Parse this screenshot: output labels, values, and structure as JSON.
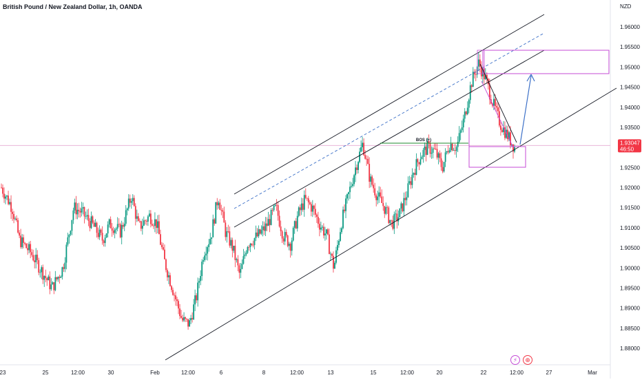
{
  "header": {
    "title": "British Pound / New Zealand Dollar, 1h, OANDA",
    "currency": "NZD"
  },
  "price_tag": {
    "price": "1.93047",
    "countdown": "46:50",
    "color": "#f23645"
  },
  "annotations": {
    "bos_label": "BOS (+)"
  },
  "bottom_icons": [
    {
      "name": "lightning-icon",
      "glyph": "⚡"
    },
    {
      "name": "globe-icon",
      "glyph": "⊕"
    }
  ],
  "colors": {
    "up": "#089981",
    "down": "#f23645",
    "zone": "#c44ad6",
    "projection": "#3b6fc7",
    "channel": "#131722",
    "bos_line": "#1f8a2e",
    "current_price_line": "#e8b4d8"
  },
  "chart_data": {
    "type": "candlestick",
    "title": "British Pound / New Zealand Dollar, 1h, OANDA",
    "ylabel": "NZD",
    "ylim": [
      1.8775,
      1.9655
    ],
    "y_ticks": [
      "1.96000",
      "1.95500",
      "1.95000",
      "1.94500",
      "1.94000",
      "1.93500",
      "1.93000",
      "1.92500",
      "1.92000",
      "1.91500",
      "1.91000",
      "1.90500",
      "1.90000",
      "1.89500",
      "1.89000",
      "1.88500",
      "1.88000"
    ],
    "x_tick_labels": [
      "23",
      "25",
      "12:00",
      "30",
      "Feb",
      "12:00",
      "6",
      "8",
      "12:00",
      "13",
      "15",
      "12:00",
      "20",
      "22",
      "12:00",
      "27",
      "Mar"
    ],
    "last_price": 1.93047,
    "price_path": [
      [
        0,
        1.92
      ],
      [
        3,
        1.915
      ],
      [
        5,
        1.907
      ],
      [
        8,
        1.904
      ],
      [
        12,
        1.898
      ],
      [
        14,
        1.895
      ],
      [
        17,
        1.9
      ],
      [
        20,
        1.915
      ],
      [
        22,
        1.914
      ],
      [
        25,
        1.911
      ],
      [
        28,
        1.907
      ],
      [
        30,
        1.911
      ],
      [
        33,
        1.909
      ],
      [
        36,
        1.918
      ],
      [
        38,
        1.91
      ],
      [
        41,
        1.913
      ],
      [
        43,
        1.911
      ],
      [
        45,
        1.902
      ],
      [
        48,
        1.893
      ],
      [
        50,
        1.887
      ],
      [
        52,
        1.886
      ],
      [
        54,
        1.893
      ],
      [
        56,
        1.904
      ],
      [
        58,
        1.908
      ],
      [
        60,
        1.918
      ],
      [
        62,
        1.909
      ],
      [
        64,
        1.905
      ],
      [
        66,
        1.898
      ],
      [
        68,
        1.906
      ],
      [
        71,
        1.908
      ],
      [
        73,
        1.91
      ],
      [
        76,
        1.915
      ],
      [
        78,
        1.908
      ],
      [
        80,
        1.906
      ],
      [
        82,
        1.913
      ],
      [
        84,
        1.917
      ],
      [
        86,
        1.915
      ],
      [
        88,
        1.911
      ],
      [
        90,
        1.908
      ],
      [
        92,
        1.9
      ],
      [
        94,
        1.911
      ],
      [
        96,
        1.918
      ],
      [
        98,
        1.925
      ],
      [
        100,
        1.931
      ],
      [
        102,
        1.922
      ],
      [
        104,
        1.918
      ],
      [
        106,
        1.915
      ],
      [
        108,
        1.911
      ],
      [
        110,
        1.913
      ],
      [
        112,
        1.918
      ],
      [
        114,
        1.924
      ],
      [
        116,
        1.928
      ],
      [
        118,
        1.93
      ],
      [
        120,
        1.929
      ],
      [
        122,
        1.925
      ],
      [
        124,
        1.931
      ],
      [
        126,
        1.93
      ],
      [
        128,
        1.937
      ],
      [
        130,
        1.946
      ],
      [
        132,
        1.951
      ],
      [
        134,
        1.947
      ],
      [
        136,
        1.941
      ],
      [
        138,
        1.936
      ],
      [
        140,
        1.933
      ],
      [
        142,
        1.93
      ]
    ]
  }
}
